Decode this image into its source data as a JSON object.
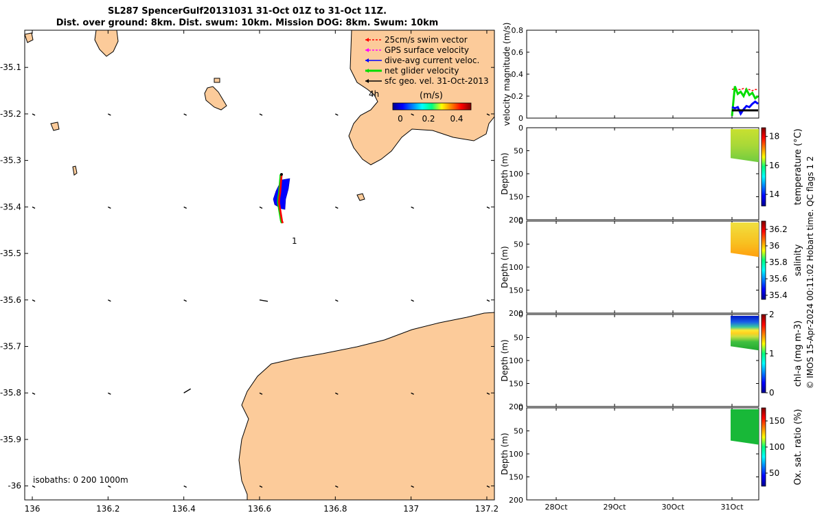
{
  "header": {
    "title": "SL287 SpencerGulf20131031 31-Oct 01Z to 31-Oct 11Z.",
    "subtitle": "Dist. over ground: 8km. Dist. swum: 10km. Mission DOG: 8km. Swum: 10km"
  },
  "colors": {
    "land": "#fccb9a",
    "swim_vector": "#ff0000",
    "gps_velocity": "#ff00ff",
    "dive_avg_current": "#0000ff",
    "net_glider_velocity": "#00dd00",
    "sfc_geo_vel": "#000000"
  },
  "map": {
    "legend": [
      {
        "label": "25cm/s swim vector",
        "color": "#ff0000"
      },
      {
        "label": "GPS surface velocity",
        "color": "#ff00ff"
      },
      {
        "label": "dive-avg current veloc.",
        "color": "#0000ff"
      },
      {
        "label": "net glider velocity",
        "color": "#00dd00"
      },
      {
        "label": "sfc geo. vel. 31-Oct-2013",
        "color": "#000000"
      }
    ],
    "duration_label": "4h",
    "colorbar_title": "(m/s)",
    "colorbar_ticks": [
      "0",
      "0.2",
      "0.4"
    ],
    "waypoint_label": "1",
    "isobaths_label": "isobaths: 0   200  1000m"
  },
  "chart_data": [
    {
      "type": "scatter",
      "panel": "map",
      "xlim": [
        135.98,
        137.22
      ],
      "ylim": [
        -36.03,
        -35.02
      ],
      "x_ticks": [
        "136",
        "136.2",
        "136.4",
        "136.6",
        "136.8",
        "137",
        "137.2"
      ],
      "y_ticks": [
        "-35.1",
        "-35.2",
        "-35.3",
        "-35.4",
        "-35.5",
        "-35.6",
        "-35.7",
        "-35.8",
        "-35.9",
        "-36"
      ],
      "track_lon": [
        136.658,
        136.656,
        136.654,
        136.652,
        136.651,
        136.653,
        136.655,
        136.657,
        136.659,
        136.661
      ],
      "track_lat": [
        -35.33,
        -35.35,
        -35.37,
        -35.38,
        -35.39,
        -35.4,
        -35.41,
        -35.42,
        -35.43,
        -35.435
      ]
    },
    {
      "type": "line",
      "panel": "velocity",
      "ylabel": "velocity magnitude (m/s)",
      "ylim": [
        0,
        0.8
      ],
      "y_ticks": [
        "0",
        "0.2",
        "0.4",
        "0.6",
        "0.8"
      ],
      "x_ticks": [
        "28Oct",
        "29Oct",
        "30Oct",
        "31Oct"
      ],
      "x": [
        0.0,
        0.05,
        0.1,
        0.15,
        0.2,
        0.25,
        0.3,
        0.35,
        0.4,
        0.45
      ],
      "series": [
        {
          "color": "#ff0000",
          "values": [
            0.26,
            0.27,
            0.26,
            0.26,
            0.27,
            0.26,
            0.26,
            0.25,
            0.26,
            0.26
          ]
        },
        {
          "color": "#00dd00",
          "values": [
            0.02,
            0.29,
            0.22,
            0.24,
            0.2,
            0.26,
            0.21,
            0.23,
            0.18,
            0.2
          ]
        },
        {
          "color": "#0000ff",
          "values": [
            0.1,
            0.09,
            0.1,
            0.04,
            0.08,
            0.11,
            0.1,
            0.13,
            0.15,
            0.13
          ]
        },
        {
          "color": "#000000",
          "values": [
            0.07,
            0.07,
            0.07,
            0.07,
            0.07,
            0.07,
            0.07,
            0.07,
            0.07,
            0.07
          ]
        }
      ]
    },
    {
      "type": "heatmap",
      "panel": "temperature",
      "ylabel": "Depth (m)",
      "y_ticks": [
        "0",
        "50",
        "100",
        "150",
        "200"
      ],
      "colorbar_label": "temperature (°C)",
      "colorbar_ticks": [
        "14",
        "16",
        "18"
      ],
      "colorbar_range": [
        13.2,
        18.6
      ],
      "depth_max_m": 75,
      "value_range_shown": [
        16.2,
        17.4
      ]
    },
    {
      "type": "heatmap",
      "panel": "salinity",
      "ylabel": "Depth (m)",
      "y_ticks": [
        "0",
        "50",
        "100",
        "150",
        "200"
      ],
      "colorbar_label": "salinity",
      "colorbar_ticks": [
        "35.4",
        "35.6",
        "35.8",
        "36",
        "36.2"
      ],
      "colorbar_range": [
        35.35,
        36.3
      ],
      "depth_max_m": 78,
      "value_range_shown": [
        36.0,
        36.15
      ]
    },
    {
      "type": "heatmap",
      "panel": "chla",
      "ylabel": "Depth (m)",
      "y_ticks": [
        "0",
        "50",
        "100",
        "150",
        "200"
      ],
      "colorbar_label": "chl-a (mg m-3)",
      "colorbar_ticks": [
        "0",
        "1",
        "2"
      ],
      "colorbar_range": [
        0,
        2
      ],
      "depth_max_m": 78,
      "value_range_shown": [
        0.1,
        1.8
      ]
    },
    {
      "type": "heatmap",
      "panel": "oxygen",
      "ylabel": "Depth (m)",
      "y_ticks": [
        "0",
        "50",
        "100",
        "150",
        "200"
      ],
      "x_ticks": [
        "28Oct",
        "29Oct",
        "30Oct",
        "31Oct"
      ],
      "colorbar_label": "Ox. sat. ratio (%)",
      "colorbar_ticks": [
        "50",
        "100",
        "150"
      ],
      "colorbar_range": [
        25,
        175
      ],
      "depth_max_m": 80,
      "value_range_shown": [
        105,
        110
      ]
    }
  ],
  "footer": {
    "credit": "© IMOS 15-Apr-2024 00:11:02 Hobart time. QC flags 1  2"
  }
}
